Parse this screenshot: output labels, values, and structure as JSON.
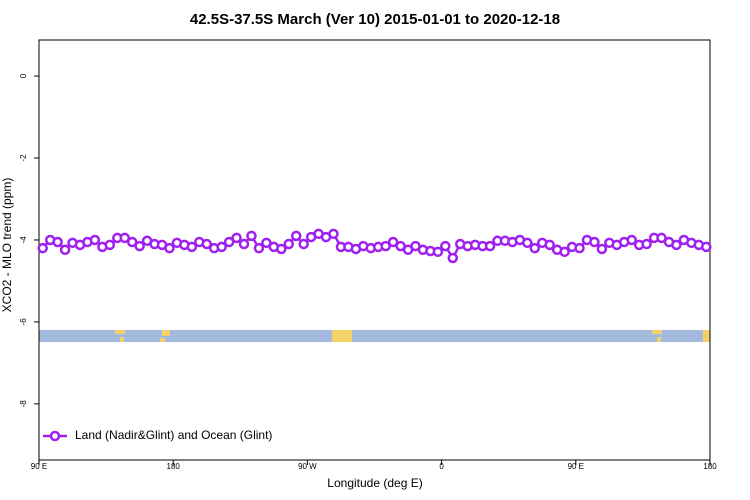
{
  "chart_data": {
    "type": "line",
    "title": "42.5S-37.5S March (Ver 10)   2015-01-01 to 2020-12-18",
    "x_label": "Longitude (deg E)",
    "y_label": "XCO2 - MLO trend (ppm)",
    "xlim": [
      90,
      540
    ],
    "xticks": [
      {
        "value": 90,
        "label": "90 E"
      },
      180,
      {
        "value": 270,
        "label": "90 W"
      },
      {
        "value": 360,
        "label": "0"
      },
      {
        "value": 450,
        "label": "90 E"
      },
      {
        "value": 540,
        "label": "180"
      }
    ],
    "ylim": [
      -9.37,
      0.88
    ],
    "yticks": [
      0,
      -2,
      -4,
      -6,
      -8
    ],
    "grid": false,
    "legend": "bottom-left",
    "x": [
      92.5,
      97.5,
      102.5,
      107.5,
      112.5,
      117.5,
      122.5,
      127.5,
      132.5,
      137.5,
      142.5,
      147.5,
      152.5,
      157.5,
      162.5,
      167.5,
      172.5,
      177.5,
      182.5,
      187.5,
      192.5,
      197.5,
      202.5,
      207.5,
      212.5,
      217.5,
      222.5,
      227.5,
      232.5,
      237.5,
      242.5,
      247.5,
      252.5,
      257.5,
      262.5,
      267.5,
      272.5,
      277.5,
      282.5,
      287.5,
      292.5,
      297.5,
      302.5,
      307.5,
      312.5,
      317.5,
      322.5,
      327.5,
      332.5,
      337.5,
      342.5,
      347.5,
      352.5,
      357.5,
      362.5,
      367.5,
      372.5,
      377.5,
      382.5,
      387.5,
      392.5,
      397.5,
      402.5,
      407.5,
      412.5,
      417.5,
      422.5,
      427.5,
      432.5,
      437.5,
      442.5,
      447.5,
      452.5,
      457.5,
      462.5,
      467.5,
      472.5,
      477.5,
      482.5,
      487.5,
      492.5,
      497.5,
      502.5,
      507.5,
      512.5,
      517.5,
      522.5,
      527.5,
      532.5,
      537.5
    ],
    "series": [
      {
        "name": "Land (Nadir&Glint) and Ocean (Glint)",
        "color": "#a020f0",
        "values": [
          -4.2,
          -4.0,
          -4.05,
          -4.24,
          -4.07,
          -4.12,
          -4.05,
          -4.0,
          -4.17,
          -4.12,
          -3.95,
          -3.95,
          -4.05,
          -4.15,
          -4.02,
          -4.1,
          -4.12,
          -4.2,
          -4.07,
          -4.12,
          -4.17,
          -4.05,
          -4.1,
          -4.2,
          -4.17,
          -4.05,
          -3.95,
          -4.1,
          -3.9,
          -4.2,
          -4.07,
          -4.17,
          -4.22,
          -4.1,
          -3.9,
          -4.1,
          -3.93,
          -3.85,
          -3.93,
          -3.85,
          -4.17,
          -4.17,
          -4.22,
          -4.15,
          -4.2,
          -4.17,
          -4.15,
          -4.05,
          -4.15,
          -4.24,
          -4.15,
          -4.24,
          -4.27,
          -4.29,
          -4.15,
          -4.44,
          -4.1,
          -4.15,
          -4.12,
          -4.15,
          -4.15,
          -4.02,
          -4.02,
          -4.05,
          -4.0,
          -4.07,
          -4.2,
          -4.07,
          -4.12,
          -4.24,
          -4.29,
          -4.17,
          -4.2,
          -4.0,
          -4.05,
          -4.22,
          -4.07,
          -4.12,
          -4.05,
          -4.0,
          -4.12,
          -4.1,
          -3.95,
          -3.95,
          -4.05,
          -4.12,
          -4.0,
          -4.07,
          -4.12,
          -4.17
        ]
      }
    ]
  }
}
